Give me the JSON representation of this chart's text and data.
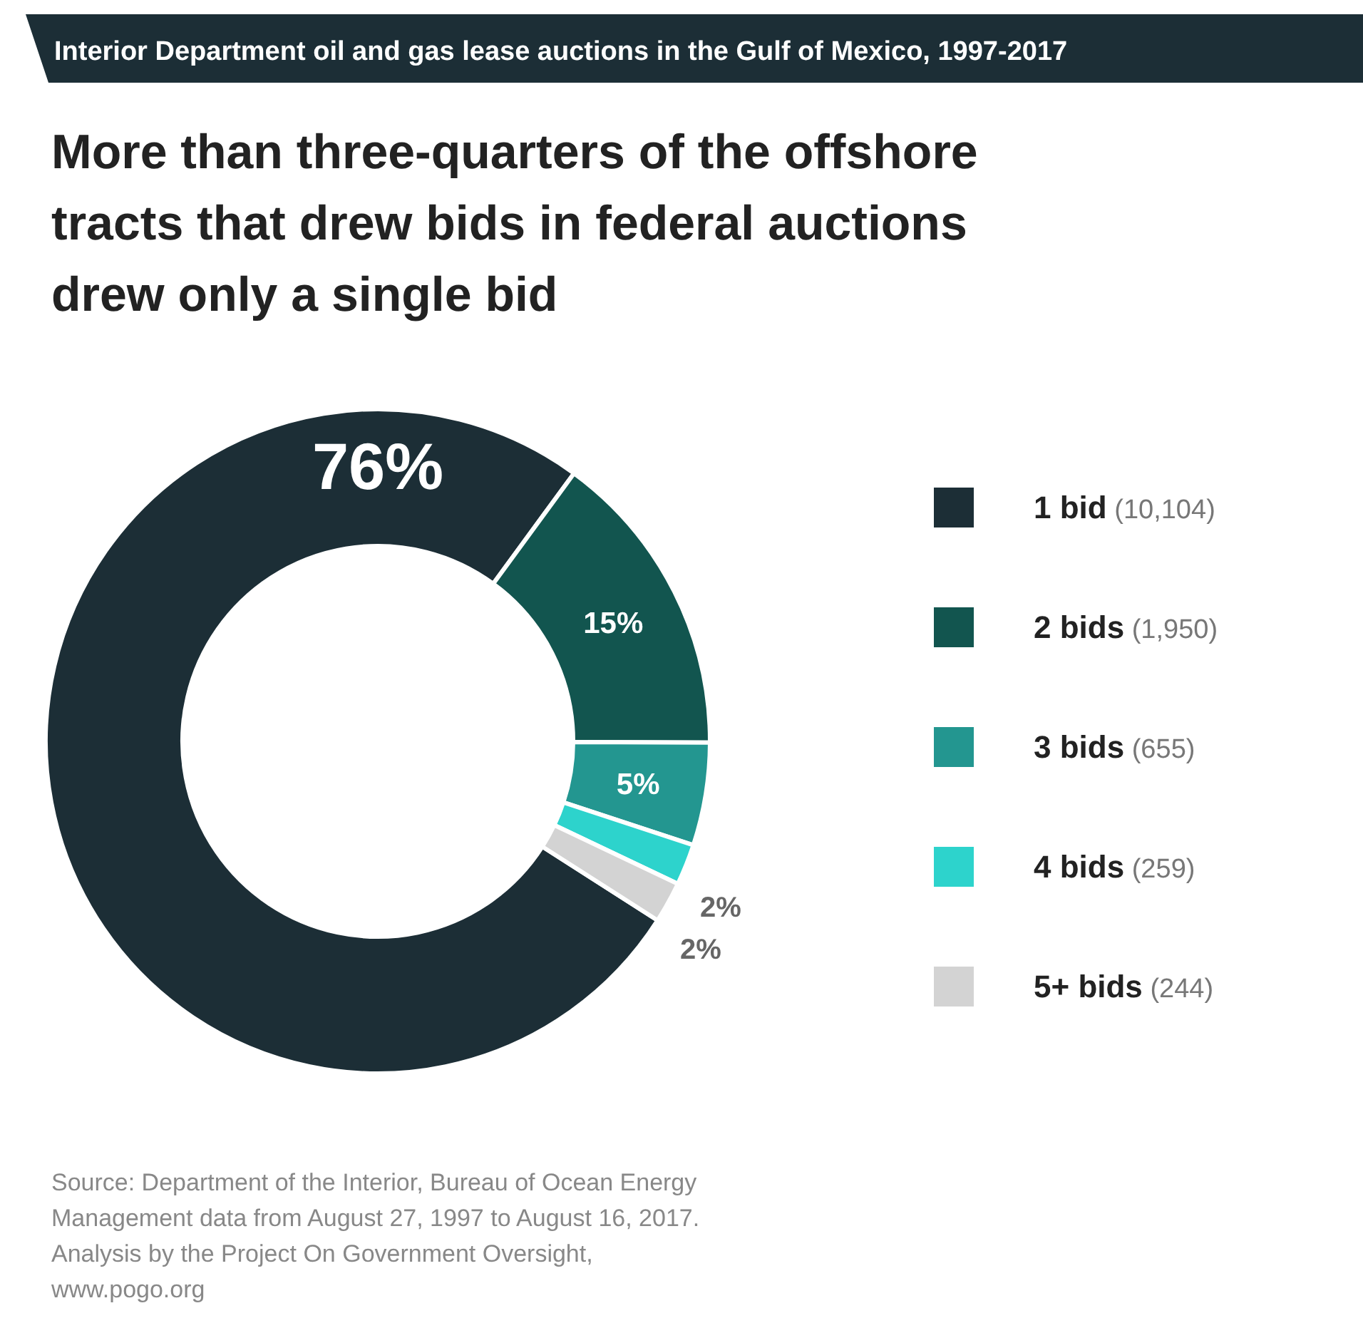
{
  "chart_data": {
    "type": "donut",
    "subtitle": "Interior Department oil and gas lease auctions in the Gulf of Mexico, 1997-2017",
    "title": "More than three-quarters of the offshore tracts that drew bids in federal auctions drew only a single bid",
    "categories": [
      "1 bid (10,104)",
      "2 bids (1,950)",
      "3 bids (655)",
      "4 bids (259)",
      "5+ bids (244)"
    ],
    "values": [
      76,
      15,
      5,
      2,
      2
    ],
    "value_labels": [
      "76%",
      "15%",
      "5%",
      "2%",
      "2%"
    ],
    "colors": [
      "#1c2e36",
      "#12554f",
      "#239690",
      "#2dd3cc",
      "#d3d3d3"
    ],
    "legend": "right",
    "annotations": [
      "Source: Department of the Interior, Bureau of Ocean Energy Management data from August 27, 1997 to August 16, 2017. Analysis by the Project On Government Oversight, www.pogo.org"
    ]
  }
}
